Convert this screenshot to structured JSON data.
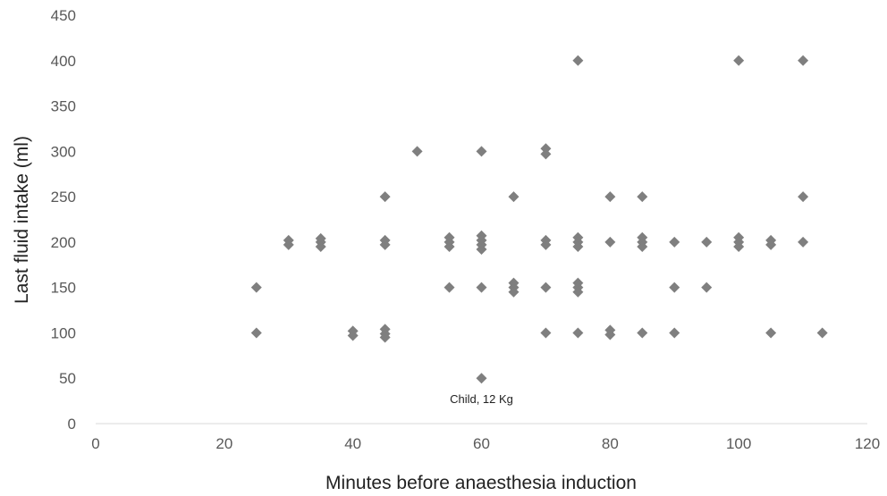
{
  "chart_data": {
    "type": "scatter",
    "xlabel": "Minutes before anaesthesia induction",
    "ylabel": "Last fluid intake (ml)",
    "xlim": [
      0,
      120
    ],
    "ylim": [
      0,
      450
    ],
    "x_ticks": [
      0,
      20,
      40,
      60,
      80,
      100,
      120
    ],
    "y_ticks": [
      0,
      50,
      100,
      150,
      200,
      250,
      300,
      350,
      400,
      450
    ],
    "grid": false,
    "legend": "none",
    "marker": "diamond",
    "marker_color": "#7f7f7f",
    "points": [
      [
        25,
        150
      ],
      [
        25,
        100
      ],
      [
        30,
        202
      ],
      [
        30,
        197
      ],
      [
        35,
        204
      ],
      [
        35,
        200
      ],
      [
        35,
        195
      ],
      [
        40,
        102
      ],
      [
        40,
        97
      ],
      [
        45,
        250
      ],
      [
        45,
        202
      ],
      [
        45,
        197
      ],
      [
        45,
        104
      ],
      [
        45,
        99
      ],
      [
        45,
        95
      ],
      [
        50,
        300
      ],
      [
        55,
        205
      ],
      [
        55,
        200
      ],
      [
        55,
        195
      ],
      [
        55,
        150
      ],
      [
        60,
        300
      ],
      [
        60,
        207
      ],
      [
        60,
        202
      ],
      [
        60,
        197
      ],
      [
        60,
        192
      ],
      [
        60,
        150
      ],
      [
        60,
        50
      ],
      [
        65,
        250
      ],
      [
        65,
        155
      ],
      [
        65,
        150
      ],
      [
        65,
        145
      ],
      [
        70,
        303
      ],
      [
        70,
        297
      ],
      [
        70,
        202
      ],
      [
        70,
        197
      ],
      [
        70,
        150
      ],
      [
        70,
        100
      ],
      [
        75,
        400
      ],
      [
        75,
        205
      ],
      [
        75,
        200
      ],
      [
        75,
        195
      ],
      [
        75,
        155
      ],
      [
        75,
        150
      ],
      [
        75,
        145
      ],
      [
        75,
        100
      ],
      [
        80,
        250
      ],
      [
        80,
        200
      ],
      [
        80,
        103
      ],
      [
        80,
        98
      ],
      [
        85,
        250
      ],
      [
        85,
        205
      ],
      [
        85,
        200
      ],
      [
        85,
        195
      ],
      [
        85,
        100
      ],
      [
        90,
        200
      ],
      [
        90,
        150
      ],
      [
        90,
        100
      ],
      [
        95,
        200
      ],
      [
        95,
        150
      ],
      [
        100,
        400
      ],
      [
        100,
        205
      ],
      [
        100,
        200
      ],
      [
        100,
        195
      ],
      [
        105,
        202
      ],
      [
        105,
        197
      ],
      [
        105,
        100
      ],
      [
        110,
        400
      ],
      [
        110,
        250
      ],
      [
        110,
        200
      ],
      [
        113,
        100
      ]
    ],
    "annotations": [
      {
        "text": "Child, 12 Kg",
        "x": 60,
        "y": 50
      }
    ]
  }
}
